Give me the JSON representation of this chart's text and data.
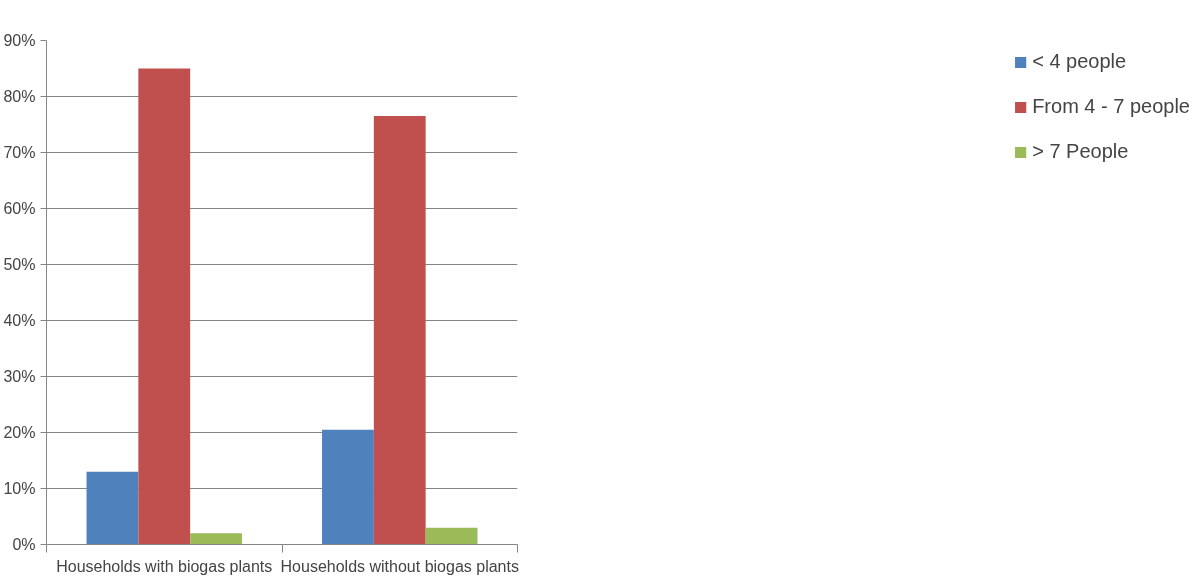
{
  "chart_data": {
    "type": "bar",
    "categories": [
      "Households with biogas plants",
      "Households without biogas plants"
    ],
    "series": [
      {
        "name": "< 4 people",
        "color": "#4f81bd",
        "values": [
          13,
          20.5
        ]
      },
      {
        "name": "From 4 - 7 people",
        "color": "#c0504d",
        "values": [
          85,
          76.5
        ]
      },
      {
        "name": "> 7 People",
        "color": "#9bbb59",
        "values": [
          2,
          3
        ]
      }
    ],
    "ylim": [
      0,
      90
    ],
    "yticks": [
      {
        "value": 0,
        "label": "0%"
      },
      {
        "value": 10,
        "label": "10%"
      },
      {
        "value": 20,
        "label": "20%"
      },
      {
        "value": 30,
        "label": "30%"
      },
      {
        "value": 40,
        "label": "40%"
      },
      {
        "value": 50,
        "label": "50%"
      },
      {
        "value": 60,
        "label": "60%"
      },
      {
        "value": 70,
        "label": "70%"
      },
      {
        "value": 80,
        "label": "80%"
      },
      {
        "value": 90,
        "label": "90%"
      }
    ],
    "grid": "y",
    "legend": "right"
  }
}
